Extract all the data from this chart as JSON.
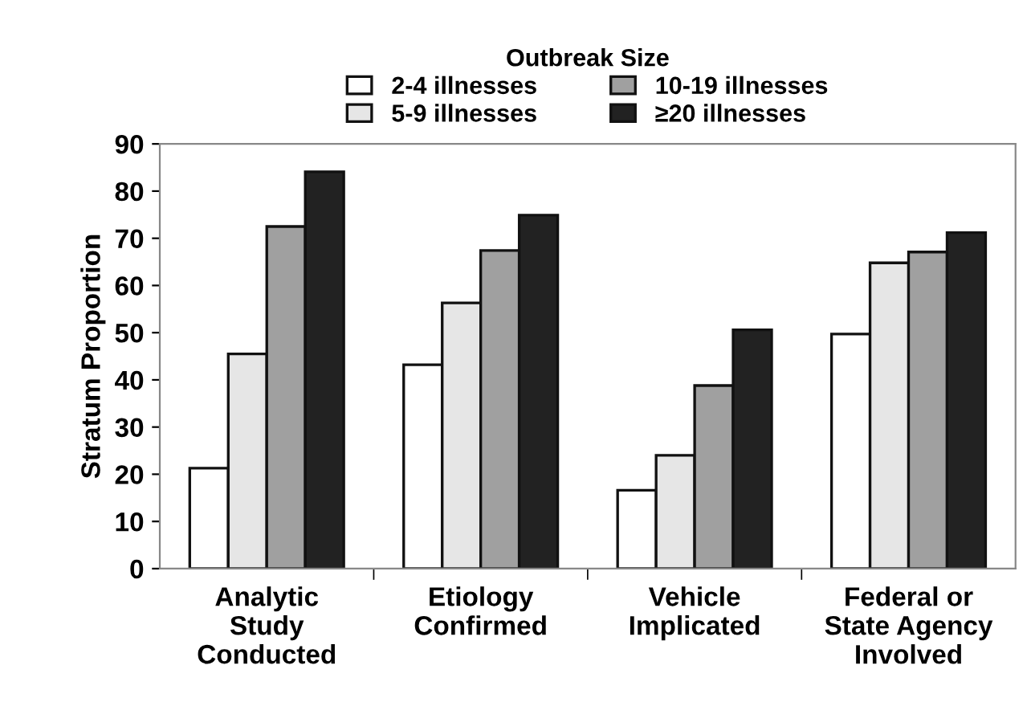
{
  "chart_data": {
    "type": "bar",
    "ylabel": "Stratum Proportion",
    "legend_title": "Outbreak Size",
    "legend": "top",
    "categories": [
      "Analytic\nStudy\nConducted",
      "Etiology\nConfirmed",
      "Vehicle\nImplicated",
      "Federal or\nState Agency\nInvolved"
    ],
    "series": [
      {
        "name": "2-4 illnesses",
        "color": "#ffffff",
        "values": [
          21.3,
          43.2,
          16.6,
          49.7
        ]
      },
      {
        "name": "5-9 illnesses",
        "color": "#e6e6e6",
        "values": [
          45.5,
          56.3,
          24.0,
          64.8
        ]
      },
      {
        "name": "10-19 illnesses",
        "color": "#a0a0a0",
        "values": [
          72.5,
          67.4,
          38.8,
          67.1
        ]
      },
      {
        "name": "≥20 illnesses",
        "color": "#222222",
        "values": [
          84.1,
          74.9,
          50.6,
          71.2
        ]
      }
    ],
    "ylim": [
      0,
      90
    ],
    "yticks": [
      0,
      10,
      20,
      30,
      40,
      50,
      60,
      70,
      80,
      90
    ],
    "grid": false
  }
}
